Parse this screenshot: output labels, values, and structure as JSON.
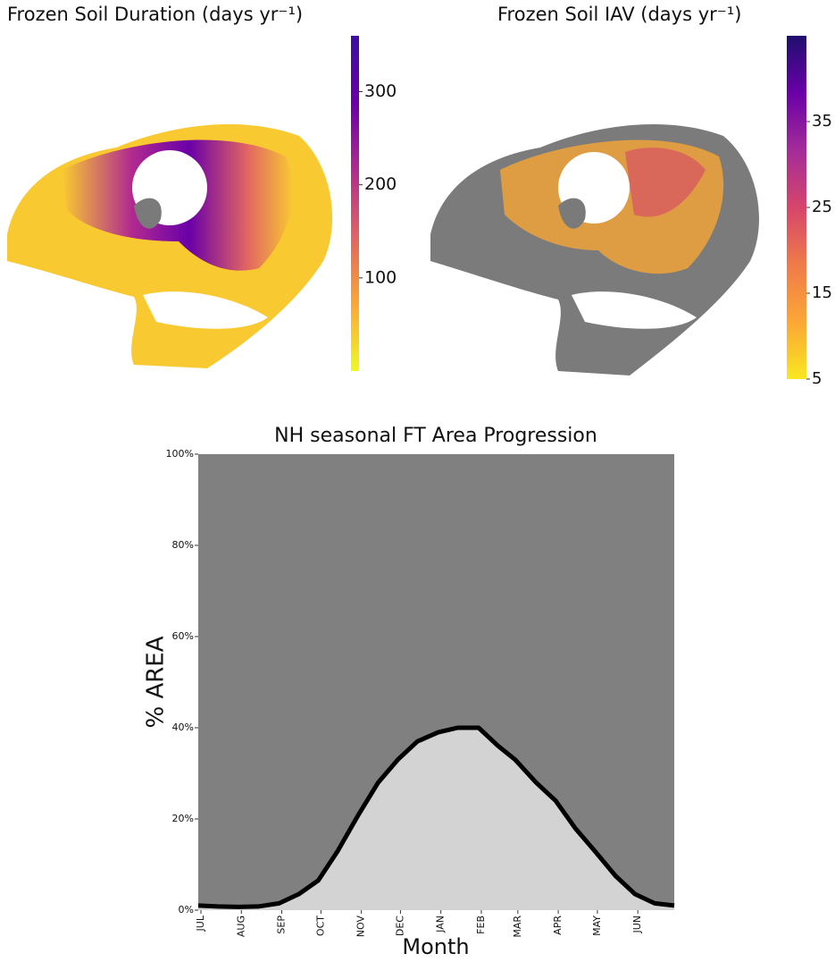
{
  "chart_data": [
    {
      "type": "map",
      "title": "Frozen Soil Duration (days yr⁻¹)",
      "colormap": [
        "#f0f921",
        "#fca636",
        "#e16462",
        "#b12a90",
        "#6a00a8",
        "#3b0ea0"
      ],
      "clim": [
        0,
        360
      ],
      "cticks": [
        100,
        200,
        300
      ]
    },
    {
      "type": "map",
      "title": "Frozen Soil IAV (days yr⁻¹)",
      "colormap": [
        "#f9e721",
        "#fca636",
        "#f07a4a",
        "#d6456b",
        "#a42c99",
        "#6a00a8",
        "#1f0f70"
      ],
      "clim": [
        5,
        45
      ],
      "cticks": [
        5,
        15,
        25,
        35
      ]
    },
    {
      "type": "area",
      "title": "NH seasonal FT Area Progression",
      "xlabel": "Month",
      "ylabel": "% AREA",
      "x": [
        0,
        15,
        31,
        46,
        62,
        77,
        92,
        107,
        123,
        138,
        153,
        168,
        184,
        199,
        215,
        230,
        243,
        259,
        274,
        289,
        304,
        320,
        335,
        350,
        365
      ],
      "values": [
        1,
        0.8,
        0.7,
        0.8,
        1.5,
        3.5,
        6.5,
        13,
        21,
        28,
        33,
        37,
        39,
        40,
        40,
        36,
        33,
        28,
        24,
        18,
        13,
        7.5,
        3.5,
        1.5,
        1
      ],
      "color": "#d3d3d3",
      "line_color": "#000000",
      "background_color": "#808080",
      "xlim": [
        0,
        365
      ],
      "xticks": [
        {
          "value": 0,
          "label": "JUL"
        },
        {
          "value": 31,
          "label": "AUG"
        },
        {
          "value": 62,
          "label": "SEP"
        },
        {
          "value": 92,
          "label": "OCT"
        },
        {
          "value": 123,
          "label": "NOV"
        },
        {
          "value": 153,
          "label": "DEC"
        },
        {
          "value": 184,
          "label": "JAN"
        },
        {
          "value": 215,
          "label": "FEB"
        },
        {
          "value": 243,
          "label": "MAR"
        },
        {
          "value": 274,
          "label": "APR"
        },
        {
          "value": 304,
          "label": "MAY"
        },
        {
          "value": 335,
          "label": "JUN"
        }
      ],
      "ylim": [
        0,
        100
      ],
      "yticks": [
        {
          "value": 0,
          "label": "0%"
        },
        {
          "value": 20,
          "label": "20%"
        },
        {
          "value": 40,
          "label": "40%"
        },
        {
          "value": 60,
          "label": "60%"
        },
        {
          "value": 80,
          "label": "80%"
        },
        {
          "value": 100,
          "label": "100%"
        }
      ]
    }
  ]
}
